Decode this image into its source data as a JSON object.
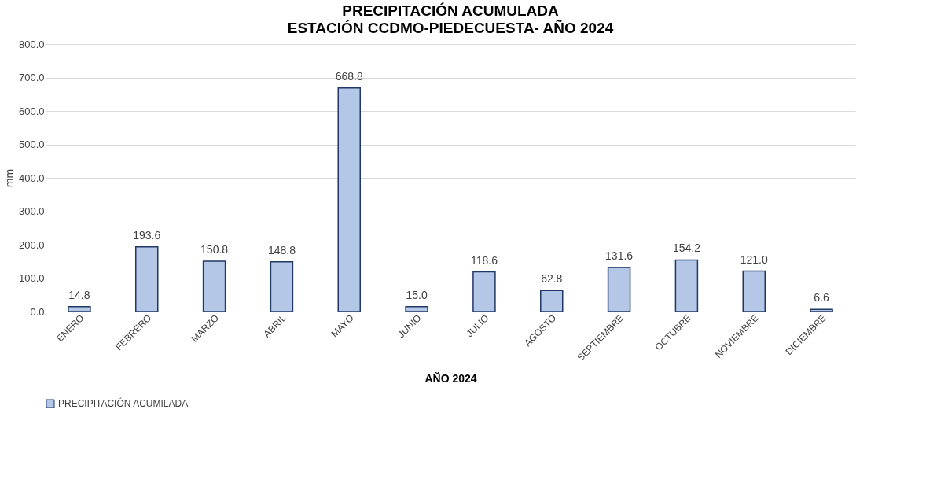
{
  "chart_data": {
    "type": "bar",
    "title": "PRECIPITACIÓN ACUMULADA",
    "subtitle": "ESTACIÓN CCDMO-PIEDECUESTA-    AÑO 2024",
    "xlabel": "AÑO 2024",
    "ylabel": "mm",
    "categories": [
      "ENERO",
      "FEBRERO",
      "MARZO",
      "ABRIL",
      "MAYO",
      "JUNIO",
      "JULIO",
      "AGOSTO",
      "SEPTIEMBRE",
      "OCTUBRE",
      "NOVIEMBRE",
      "DICIEMBRE"
    ],
    "series": [
      {
        "name": "PRECIPITACIÓN ACUMILADA",
        "color": "#b4c7e7",
        "values": [
          14.8,
          193.6,
          150.8,
          148.8,
          668.8,
          15.0,
          118.6,
          62.8,
          131.6,
          154.2,
          121.0,
          6.6
        ],
        "value_labels": [
          "14.8",
          "193.6",
          "150.8",
          "148.8",
          "668.8",
          "15.0",
          "118.6",
          "62.8",
          "131.6",
          "154.2",
          "121.0",
          "6.6"
        ]
      }
    ],
    "ylim": [
      0,
      800
    ],
    "yticks": [
      {
        "value": 0,
        "label": "0.0"
      },
      {
        "value": 100,
        "label": "100.0"
      },
      {
        "value": 200,
        "label": "200.0"
      },
      {
        "value": 300,
        "label": "300.0"
      },
      {
        "value": 400,
        "label": "400.0"
      },
      {
        "value": 500,
        "label": "500.0"
      },
      {
        "value": 600,
        "label": "600.0"
      },
      {
        "value": 700,
        "label": "700.0"
      },
      {
        "value": 800,
        "label": "800.0"
      }
    ],
    "grid": "y",
    "legend": "bottom"
  }
}
